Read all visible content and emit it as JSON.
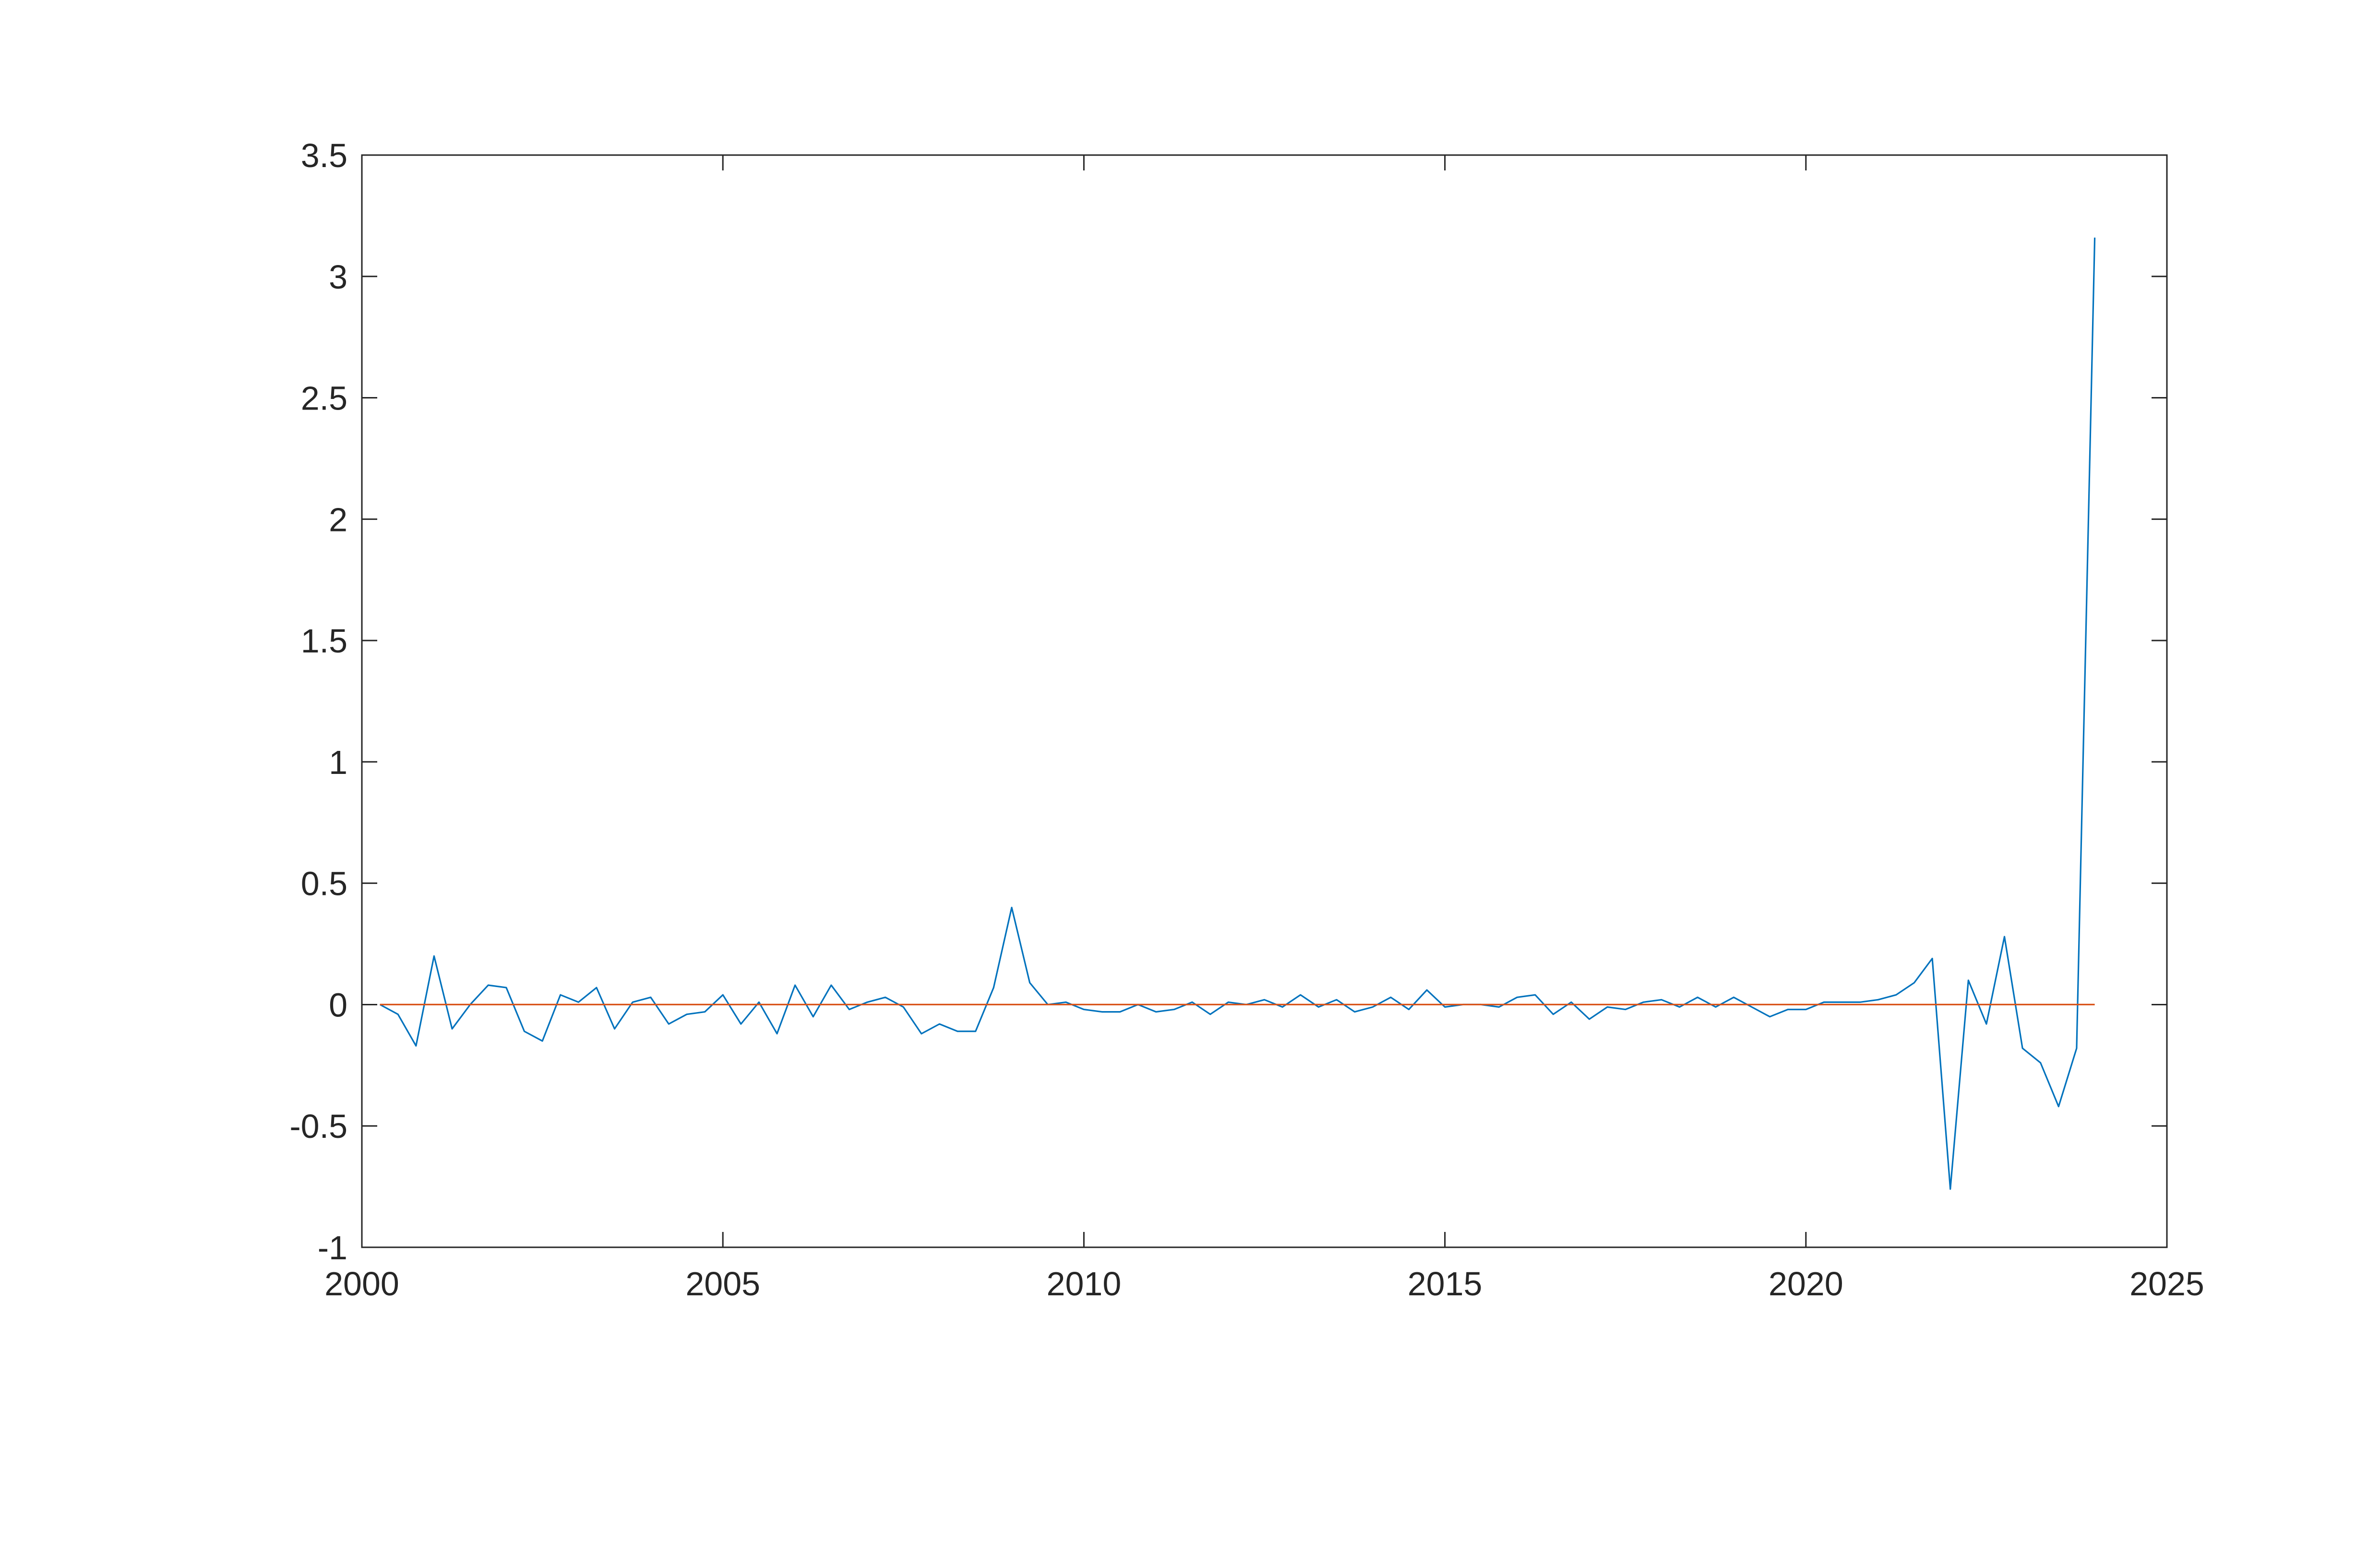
{
  "chart_data": {
    "type": "line",
    "xlim": [
      2000,
      2025
    ],
    "xticks": [
      2000,
      2005,
      2010,
      2015,
      2020,
      2025
    ],
    "ylim": [
      -1,
      3.5
    ],
    "yticks": [
      -1,
      -0.5,
      0,
      0.5,
      1,
      1.5,
      2,
      2.5,
      3,
      3.5
    ],
    "grid": false,
    "series": [
      {
        "color": "#0072bd",
        "x": [
          2000.25,
          2000.5,
          2000.75,
          2001,
          2001.25,
          2001.5,
          2001.75,
          2002,
          2002.25,
          2002.5,
          2002.75,
          2003,
          2003.25,
          2003.5,
          2003.75,
          2004,
          2004.25,
          2004.5,
          2004.75,
          2005,
          2005.25,
          2005.5,
          2005.75,
          2006,
          2006.25,
          2006.5,
          2006.75,
          2007,
          2007.25,
          2007.5,
          2007.75,
          2008,
          2008.25,
          2008.5,
          2008.75,
          2009,
          2009.25,
          2009.5,
          2009.75,
          2010,
          2010.25,
          2010.5,
          2010.75,
          2011,
          2011.25,
          2011.5,
          2011.75,
          2012,
          2012.25,
          2012.5,
          2012.75,
          2013,
          2013.25,
          2013.5,
          2013.75,
          2014,
          2014.25,
          2014.5,
          2014.75,
          2015,
          2015.25,
          2015.5,
          2015.75,
          2016,
          2016.25,
          2016.5,
          2016.75,
          2017,
          2017.25,
          2017.5,
          2017.75,
          2018,
          2018.25,
          2018.5,
          2018.75,
          2019,
          2019.25,
          2019.5,
          2019.75,
          2020,
          2020.25,
          2020.5,
          2020.75,
          2021,
          2021.25,
          2021.5,
          2021.75,
          2022,
          2022.25,
          2022.5,
          2022.75,
          2023,
          2023.25,
          2023.5,
          2023.75,
          2024
        ],
        "values": [
          0,
          -0.04,
          -0.17,
          0.2,
          -0.1,
          0,
          0.08,
          0.07,
          -0.11,
          -0.15,
          0.04,
          0.01,
          0.07,
          -0.1,
          0.01,
          0.03,
          -0.08,
          -0.04,
          -0.03,
          0.04,
          -0.08,
          0.01,
          -0.12,
          0.08,
          -0.05,
          0.08,
          -0.02,
          0.01,
          0.03,
          -0.01,
          -0.12,
          -0.08,
          -0.11,
          -0.11,
          0.07,
          0.4,
          0.09,
          0,
          0.01,
          -0.02,
          -0.03,
          -0.03,
          0,
          -0.03,
          -0.02,
          0.01,
          -0.04,
          0.01,
          0,
          0.02,
          -0.01,
          0.04,
          -0.01,
          0.02,
          -0.03,
          -0.01,
          0.03,
          -0.02,
          0.06,
          -0.01,
          0,
          0,
          -0.01,
          0.03,
          0.04,
          -0.04,
          0.01,
          -0.06,
          -0.01,
          -0.02,
          0.01,
          0.02,
          -0.01,
          0.03,
          -0.01,
          0.03,
          -0.01,
          -0.05,
          -0.02,
          -0.02,
          0.01,
          0.01,
          0.01,
          0.02,
          0.04,
          0.09,
          0.19,
          -0.76,
          0.1,
          -0.08,
          0.28,
          -0.18,
          -0.24,
          -0.42,
          -0.18,
          3.16
        ]
      },
      {
        "color": "#d95319",
        "x": [
          2000.25,
          2024
        ],
        "values": [
          0,
          0
        ]
      }
    ]
  }
}
